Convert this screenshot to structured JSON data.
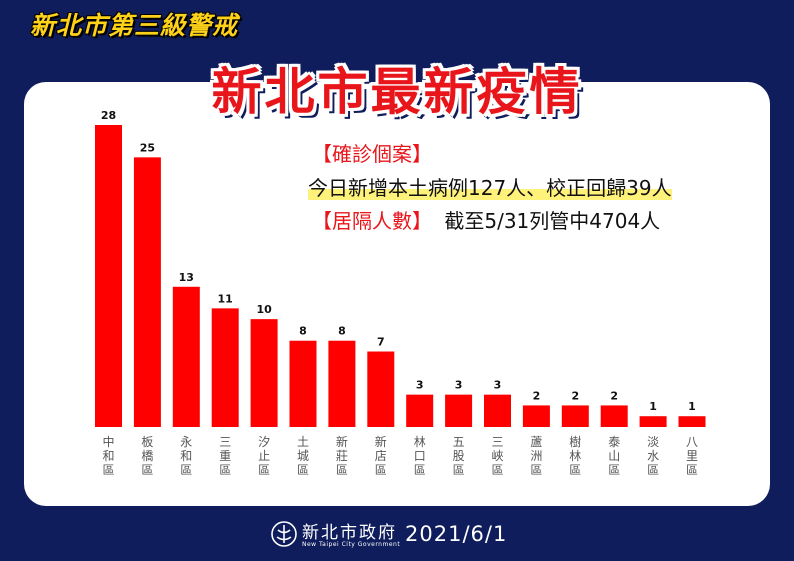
{
  "header": {
    "top_title": "新北市第三級警戒",
    "main_title": "新北市最新疫情"
  },
  "info": {
    "case_label": "【確診個案】",
    "case_text": "今日新增本土病例127人、校正回歸39人",
    "quarantine_label": "【居隔人數】",
    "quarantine_text": "截至5/31列管中4704人"
  },
  "footer": {
    "gov_name": "新北市政府",
    "gov_name_en": "New Taipei City Government",
    "date": "2021/6/1"
  },
  "colors": {
    "bar": "#ff0000",
    "background": "#0f1d5c",
    "accent_red": "#e8151b"
  },
  "chart_data": {
    "type": "bar",
    "categories": [
      "中和區",
      "板橋區",
      "永和區",
      "三重區",
      "汐止區",
      "土城區",
      "新莊區",
      "新店區",
      "林口區",
      "五股區",
      "三峽區",
      "蘆洲區",
      "樹林區",
      "泰山區",
      "淡水區",
      "八里區"
    ],
    "values": [
      28,
      25,
      13,
      11,
      10,
      8,
      8,
      7,
      3,
      3,
      3,
      2,
      2,
      2,
      1,
      1
    ],
    "title": "",
    "xlabel": "",
    "ylabel": "",
    "ylim": [
      0,
      28
    ],
    "grid": false
  }
}
